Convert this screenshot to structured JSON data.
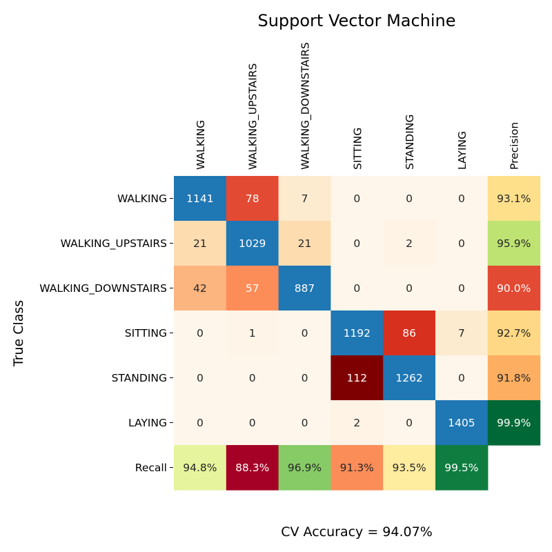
{
  "chart_data": {
    "type": "heatmap",
    "title": "Support Vector Machine",
    "ylabel": "True Class",
    "footer": "CV Accuracy = 94.07%",
    "columns": [
      "WALKING",
      "WALKING_UPSTAIRS",
      "WALKING_DOWNSTAIRS",
      "SITTING",
      "STANDING",
      "LAYING",
      "Precision"
    ],
    "rows": [
      "WALKING",
      "WALKING_UPSTAIRS",
      "WALKING_DOWNSTAIRS",
      "SITTING",
      "STANDING",
      "LAYING",
      "Recall"
    ],
    "cells": [
      [
        {
          "text": "1141",
          "color": "#1f77b4",
          "text_color": "#ffffff"
        },
        {
          "text": "78",
          "color": "#e34a33",
          "text_color": "#ffffff"
        },
        {
          "text": "7",
          "color": "#fdebd0",
          "text_color": "#262626"
        },
        {
          "text": "0",
          "color": "#fef6ea",
          "text_color": "#262626"
        },
        {
          "text": "0",
          "color": "#fef6ea",
          "text_color": "#262626"
        },
        {
          "text": "0",
          "color": "#fef6ea",
          "text_color": "#262626"
        },
        {
          "text": "93.1%",
          "color": "#fee08b",
          "text_color": "#262626"
        }
      ],
      [
        {
          "text": "21",
          "color": "#fddcb0",
          "text_color": "#262626"
        },
        {
          "text": "1029",
          "color": "#1f77b4",
          "text_color": "#ffffff"
        },
        {
          "text": "21",
          "color": "#fddcb0",
          "text_color": "#262626"
        },
        {
          "text": "0",
          "color": "#fef6ea",
          "text_color": "#262626"
        },
        {
          "text": "2",
          "color": "#fef3e5",
          "text_color": "#262626"
        },
        {
          "text": "0",
          "color": "#fef6ea",
          "text_color": "#262626"
        },
        {
          "text": "95.9%",
          "color": "#bfe373",
          "text_color": "#262626"
        }
      ],
      [
        {
          "text": "42",
          "color": "#fdb57f",
          "text_color": "#262626"
        },
        {
          "text": "57",
          "color": "#fc8d59",
          "text_color": "#ffffff"
        },
        {
          "text": "887",
          "color": "#1f77b4",
          "text_color": "#ffffff"
        },
        {
          "text": "0",
          "color": "#fef6ea",
          "text_color": "#262626"
        },
        {
          "text": "0",
          "color": "#fef6ea",
          "text_color": "#262626"
        },
        {
          "text": "0",
          "color": "#fef6ea",
          "text_color": "#262626"
        },
        {
          "text": "90.0%",
          "color": "#e34a33",
          "text_color": "#ffffff"
        }
      ],
      [
        {
          "text": "0",
          "color": "#fef6ea",
          "text_color": "#262626"
        },
        {
          "text": "1",
          "color": "#fef4e8",
          "text_color": "#262626"
        },
        {
          "text": "0",
          "color": "#fef6ea",
          "text_color": "#262626"
        },
        {
          "text": "1192",
          "color": "#1f77b4",
          "text_color": "#ffffff"
        },
        {
          "text": "86",
          "color": "#d7301f",
          "text_color": "#ffffff"
        },
        {
          "text": "7",
          "color": "#fdebd0",
          "text_color": "#262626"
        },
        {
          "text": "92.7%",
          "color": "#fed884",
          "text_color": "#262626"
        }
      ],
      [
        {
          "text": "0",
          "color": "#fef6ea",
          "text_color": "#262626"
        },
        {
          "text": "0",
          "color": "#fef6ea",
          "text_color": "#262626"
        },
        {
          "text": "0",
          "color": "#fef6ea",
          "text_color": "#262626"
        },
        {
          "text": "112",
          "color": "#7f0000",
          "text_color": "#ffffff"
        },
        {
          "text": "1262",
          "color": "#1f77b4",
          "text_color": "#ffffff"
        },
        {
          "text": "0",
          "color": "#fef6ea",
          "text_color": "#262626"
        },
        {
          "text": "91.8%",
          "color": "#fdae61",
          "text_color": "#262626"
        }
      ],
      [
        {
          "text": "0",
          "color": "#fef6ea",
          "text_color": "#262626"
        },
        {
          "text": "0",
          "color": "#fef6ea",
          "text_color": "#262626"
        },
        {
          "text": "0",
          "color": "#fef6ea",
          "text_color": "#262626"
        },
        {
          "text": "2",
          "color": "#fef3e5",
          "text_color": "#262626"
        },
        {
          "text": "0",
          "color": "#fef6ea",
          "text_color": "#262626"
        },
        {
          "text": "1405",
          "color": "#1f77b4",
          "text_color": "#ffffff"
        },
        {
          "text": "99.9%",
          "color": "#006837",
          "text_color": "#ffffff"
        }
      ],
      [
        {
          "text": "94.8%",
          "color": "#e6f59d",
          "text_color": "#262626"
        },
        {
          "text": "88.3%",
          "color": "#a50026",
          "text_color": "#ffffff"
        },
        {
          "text": "96.9%",
          "color": "#86cb66",
          "text_color": "#262626"
        },
        {
          "text": "91.3%",
          "color": "#fb8d59",
          "text_color": "#262626"
        },
        {
          "text": "93.5%",
          "color": "#feec9f",
          "text_color": "#262626"
        },
        {
          "text": "99.5%",
          "color": "#0f7d3f",
          "text_color": "#ffffff"
        },
        null
      ]
    ]
  }
}
